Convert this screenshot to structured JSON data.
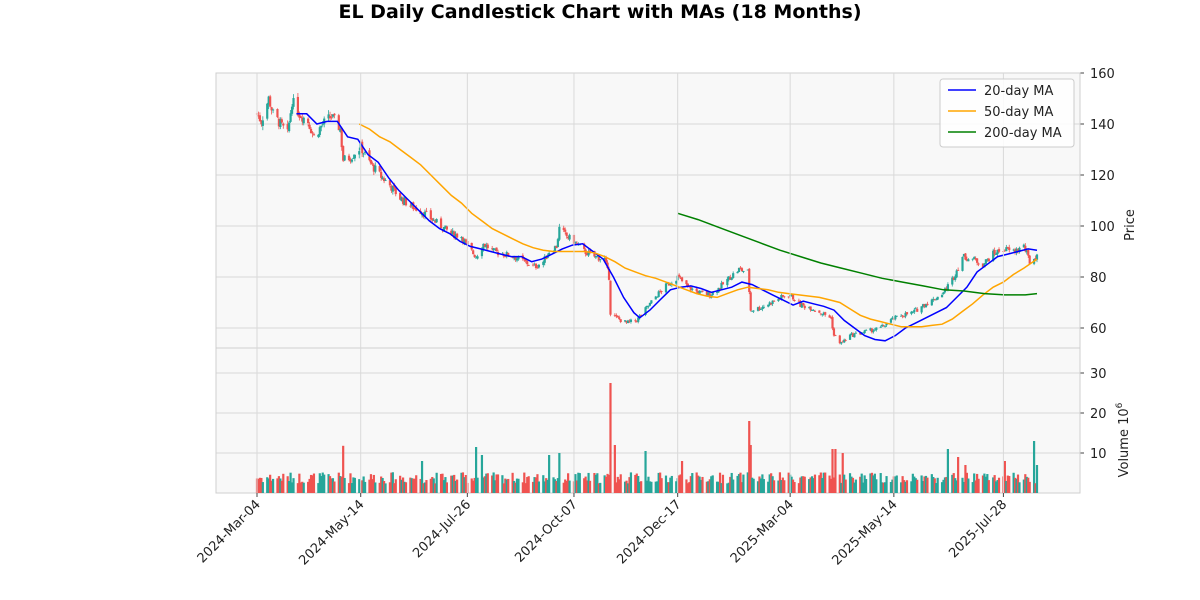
{
  "chart_data": {
    "type": "candlestick",
    "title": "EL Daily Candlestick Chart with MAs (18 Months)",
    "price_axis": {
      "label": "Price",
      "ticks": [
        60,
        80,
        100,
        120,
        140,
        160
      ],
      "range": [
        50,
        160
      ]
    },
    "volume_axis": {
      "label": "Volume",
      "exponent_label": "6",
      "ticks": [
        10,
        20,
        30
      ],
      "range": [
        0,
        30
      ]
    },
    "x_axis": {
      "ticks": [
        "2024-Mar-04",
        "2024-May-14",
        "2024-Jul-26",
        "2024-Oct-07",
        "2024-Dec-17",
        "2025-Mar-04",
        "2025-May-14",
        "2025-Jul-28"
      ],
      "start": "2024-03-04",
      "end": "2025-08-20"
    },
    "price_anchors": [
      [
        "2024-03-04",
        144
      ],
      [
        "2024-03-07",
        141
      ],
      [
        "2024-03-12",
        150
      ],
      [
        "2024-03-15",
        144
      ],
      [
        "2024-03-20",
        140
      ],
      [
        "2024-03-25",
        136
      ],
      [
        "2024-03-28",
        149
      ],
      [
        "2024-04-02",
        144
      ],
      [
        "2024-04-08",
        141
      ],
      [
        "2024-04-12",
        135
      ],
      [
        "2024-04-18",
        140
      ],
      [
        "2024-04-24",
        143
      ],
      [
        "2024-04-30",
        138
      ],
      [
        "2024-05-02",
        126
      ],
      [
        "2024-05-07",
        127
      ],
      [
        "2024-05-14",
        131
      ],
      [
        "2024-05-20",
        125
      ],
      [
        "2024-05-27",
        120
      ],
      [
        "2024-06-03",
        116
      ],
      [
        "2024-06-10",
        111
      ],
      [
        "2024-06-17",
        108
      ],
      [
        "2024-06-24",
        106
      ],
      [
        "2024-07-01",
        103
      ],
      [
        "2024-07-08",
        100
      ],
      [
        "2024-07-15",
        97
      ],
      [
        "2024-07-22",
        96
      ],
      [
        "2024-07-26",
        92
      ],
      [
        "2024-08-01",
        88
      ],
      [
        "2024-08-06",
        93
      ],
      [
        "2024-08-13",
        90
      ],
      [
        "2024-08-20",
        89
      ],
      [
        "2024-08-27",
        88
      ],
      [
        "2024-09-03",
        86
      ],
      [
        "2024-09-10",
        84
      ],
      [
        "2024-09-16",
        86
      ],
      [
        "2024-09-20",
        90
      ],
      [
        "2024-09-25",
        92
      ],
      [
        "2024-09-27",
        99
      ],
      [
        "2024-10-02",
        96
      ],
      [
        "2024-10-07",
        94
      ],
      [
        "2024-10-14",
        90
      ],
      [
        "2024-10-21",
        88
      ],
      [
        "2024-10-28",
        87
      ],
      [
        "2024-10-31",
        80
      ],
      [
        "2024-11-01",
        66
      ],
      [
        "2024-11-05",
        64
      ],
      [
        "2024-11-12",
        62
      ],
      [
        "2024-11-19",
        63
      ],
      [
        "2024-11-26",
        68
      ],
      [
        "2024-12-03",
        73
      ],
      [
        "2024-12-10",
        77
      ],
      [
        "2024-12-17",
        80
      ],
      [
        "2024-12-24",
        76
      ],
      [
        "2024-12-31",
        74
      ],
      [
        "2025-01-08",
        73
      ],
      [
        "2025-01-15",
        76
      ],
      [
        "2025-01-22",
        80
      ],
      [
        "2025-01-28",
        83
      ],
      [
        "2025-02-03",
        82
      ],
      [
        "2025-02-05",
        67
      ],
      [
        "2025-02-12",
        68
      ],
      [
        "2025-02-19",
        70
      ],
      [
        "2025-02-26",
        72
      ],
      [
        "2025-03-04",
        73
      ],
      [
        "2025-03-11",
        69
      ],
      [
        "2025-03-18",
        68
      ],
      [
        "2025-03-25",
        66
      ],
      [
        "2025-04-01",
        64
      ],
      [
        "2025-04-03",
        57
      ],
      [
        "2025-04-08",
        54
      ],
      [
        "2025-04-14",
        57
      ],
      [
        "2025-04-21",
        58
      ],
      [
        "2025-04-28",
        59
      ],
      [
        "2025-05-05",
        60
      ],
      [
        "2025-05-12",
        63
      ],
      [
        "2025-05-19",
        65
      ],
      [
        "2025-05-27",
        66
      ],
      [
        "2025-06-03",
        69
      ],
      [
        "2025-06-10",
        71
      ],
      [
        "2025-06-17",
        74
      ],
      [
        "2025-06-24",
        80
      ],
      [
        "2025-06-30",
        88
      ],
      [
        "2025-07-07",
        87
      ],
      [
        "2025-07-14",
        85
      ],
      [
        "2025-07-21",
        89
      ],
      [
        "2025-07-28",
        91
      ],
      [
        "2025-08-04",
        90
      ],
      [
        "2025-08-11",
        92
      ],
      [
        "2025-08-15",
        86
      ],
      [
        "2025-08-20",
        88
      ]
    ],
    "volume_spikes": [
      [
        "2024-05-02",
        11.8
      ],
      [
        "2024-06-25",
        8
      ],
      [
        "2024-08-01",
        11.5
      ],
      [
        "2024-08-05",
        9.5
      ],
      [
        "2024-09-20",
        9.5
      ],
      [
        "2024-09-27",
        10
      ],
      [
        "2024-11-01",
        27.5
      ],
      [
        "2024-11-04",
        12
      ],
      [
        "2024-11-25",
        10.5
      ],
      [
        "2024-12-20",
        8
      ],
      [
        "2025-02-04",
        18
      ],
      [
        "2025-02-05",
        12
      ],
      [
        "2025-04-02",
        11
      ],
      [
        "2025-04-04",
        11
      ],
      [
        "2025-04-09",
        10
      ],
      [
        "2025-06-20",
        11
      ],
      [
        "2025-06-27",
        9
      ],
      [
        "2025-07-02",
        7
      ],
      [
        "2025-07-29",
        8
      ],
      [
        "2025-08-18",
        13
      ],
      [
        "2025-08-20",
        7
      ]
    ],
    "series": [
      {
        "name": "20-day MA",
        "color": "#0000ff",
        "points": [
          [
            "2024-03-31",
            144
          ],
          [
            "2024-04-07",
            144
          ],
          [
            "2024-04-14",
            140
          ],
          [
            "2024-04-21",
            141
          ],
          [
            "2024-04-28",
            141
          ],
          [
            "2024-05-05",
            135
          ],
          [
            "2024-05-12",
            134
          ],
          [
            "2024-05-19",
            128
          ],
          [
            "2024-05-26",
            125
          ],
          [
            "2024-06-02",
            119
          ],
          [
            "2024-06-09",
            114
          ],
          [
            "2024-06-16",
            110
          ],
          [
            "2024-06-23",
            106
          ],
          [
            "2024-06-30",
            102
          ],
          [
            "2024-07-07",
            99
          ],
          [
            "2024-07-14",
            97
          ],
          [
            "2024-07-21",
            94
          ],
          [
            "2024-07-28",
            92
          ],
          [
            "2024-08-04",
            91
          ],
          [
            "2024-08-11",
            90
          ],
          [
            "2024-08-18",
            89
          ],
          [
            "2024-08-25",
            88
          ],
          [
            "2024-09-01",
            88
          ],
          [
            "2024-09-08",
            86
          ],
          [
            "2024-09-15",
            87
          ],
          [
            "2024-09-22",
            89
          ],
          [
            "2024-09-29",
            91
          ],
          [
            "2024-10-06",
            92.5
          ],
          [
            "2024-10-13",
            93
          ],
          [
            "2024-10-20",
            90
          ],
          [
            "2024-10-27",
            87
          ],
          [
            "2024-11-03",
            80
          ],
          [
            "2024-11-10",
            72
          ],
          [
            "2024-11-17",
            66
          ],
          [
            "2024-11-21",
            64
          ],
          [
            "2024-11-28",
            67
          ],
          [
            "2024-12-05",
            71
          ],
          [
            "2024-12-12",
            75
          ],
          [
            "2024-12-19",
            76
          ],
          [
            "2024-12-26",
            76.5
          ],
          [
            "2025-01-02",
            75.5
          ],
          [
            "2025-01-09",
            74
          ],
          [
            "2025-01-16",
            75
          ],
          [
            "2025-01-23",
            76
          ],
          [
            "2025-01-30",
            78
          ],
          [
            "2025-02-06",
            77
          ],
          [
            "2025-02-13",
            75
          ],
          [
            "2025-02-20",
            73
          ],
          [
            "2025-02-27",
            71
          ],
          [
            "2025-03-06",
            69
          ],
          [
            "2025-03-13",
            70.5
          ],
          [
            "2025-03-20",
            69.5
          ],
          [
            "2025-03-27",
            68.5
          ],
          [
            "2025-04-03",
            67
          ],
          [
            "2025-04-10",
            63
          ],
          [
            "2025-04-17",
            60
          ],
          [
            "2025-04-24",
            57
          ],
          [
            "2025-05-01",
            55.5
          ],
          [
            "2025-05-08",
            55
          ],
          [
            "2025-05-15",
            57
          ],
          [
            "2025-05-22",
            60
          ],
          [
            "2025-05-29",
            62
          ],
          [
            "2025-06-05",
            64
          ],
          [
            "2025-06-12",
            66
          ],
          [
            "2025-06-19",
            68
          ],
          [
            "2025-06-26",
            72
          ],
          [
            "2025-07-03",
            76
          ],
          [
            "2025-07-10",
            82
          ],
          [
            "2025-07-17",
            85
          ],
          [
            "2025-07-24",
            88
          ],
          [
            "2025-07-31",
            89
          ],
          [
            "2025-08-07",
            90
          ],
          [
            "2025-08-14",
            91
          ],
          [
            "2025-08-20",
            90.5
          ]
        ]
      },
      {
        "name": "50-day MA",
        "color": "#ffa500",
        "points": [
          [
            "2024-05-13",
            140
          ],
          [
            "2024-05-20",
            138
          ],
          [
            "2024-05-27",
            135
          ],
          [
            "2024-06-03",
            133
          ],
          [
            "2024-06-10",
            130
          ],
          [
            "2024-06-17",
            127
          ],
          [
            "2024-06-24",
            124
          ],
          [
            "2024-07-01",
            120
          ],
          [
            "2024-07-08",
            116
          ],
          [
            "2024-07-15",
            112
          ],
          [
            "2024-07-22",
            109
          ],
          [
            "2024-07-29",
            105
          ],
          [
            "2024-08-05",
            102
          ],
          [
            "2024-08-12",
            99
          ],
          [
            "2024-08-19",
            97
          ],
          [
            "2024-08-26",
            95
          ],
          [
            "2024-09-02",
            93
          ],
          [
            "2024-09-09",
            91.5
          ],
          [
            "2024-09-16",
            90.5
          ],
          [
            "2024-09-23",
            90
          ],
          [
            "2024-09-30",
            90
          ],
          [
            "2024-10-07",
            90
          ],
          [
            "2024-10-14",
            90
          ],
          [
            "2024-10-21",
            89.5
          ],
          [
            "2024-10-28",
            88
          ],
          [
            "2024-11-04",
            86
          ],
          [
            "2024-11-11",
            83.5
          ],
          [
            "2024-11-18",
            82
          ],
          [
            "2024-11-25",
            80.5
          ],
          [
            "2024-12-02",
            79.5
          ],
          [
            "2024-12-09",
            78
          ],
          [
            "2024-12-16",
            76.5
          ],
          [
            "2024-12-23",
            75
          ],
          [
            "2024-12-30",
            73.5
          ],
          [
            "2025-01-06",
            72.5
          ],
          [
            "2025-01-13",
            72
          ],
          [
            "2025-01-20",
            73.5
          ],
          [
            "2025-01-27",
            75
          ],
          [
            "2025-02-03",
            76
          ],
          [
            "2025-02-10",
            75.5
          ],
          [
            "2025-02-17",
            75
          ],
          [
            "2025-02-24",
            74
          ],
          [
            "2025-03-03",
            73.5
          ],
          [
            "2025-03-10",
            73
          ],
          [
            "2025-03-17",
            72.5
          ],
          [
            "2025-03-24",
            72
          ],
          [
            "2025-03-31",
            71
          ],
          [
            "2025-04-07",
            70
          ],
          [
            "2025-04-14",
            67.5
          ],
          [
            "2025-04-21",
            65
          ],
          [
            "2025-04-28",
            63.5
          ],
          [
            "2025-05-05",
            62.5
          ],
          [
            "2025-05-12",
            61.5
          ],
          [
            "2025-05-19",
            60.5
          ],
          [
            "2025-05-26",
            60.5
          ],
          [
            "2025-06-02",
            60.5
          ],
          [
            "2025-06-09",
            61
          ],
          [
            "2025-06-16",
            61.5
          ],
          [
            "2025-06-23",
            63.5
          ],
          [
            "2025-06-30",
            66.5
          ],
          [
            "2025-07-07",
            69.5
          ],
          [
            "2025-07-14",
            73
          ],
          [
            "2025-07-21",
            76
          ],
          [
            "2025-07-28",
            78
          ],
          [
            "2025-08-04",
            81
          ],
          [
            "2025-08-11",
            83.5
          ],
          [
            "2025-08-20",
            87
          ]
        ]
      },
      {
        "name": "200-day MA",
        "color": "#008000",
        "points": [
          [
            "2024-12-17",
            105
          ],
          [
            "2024-12-31",
            102.5
          ],
          [
            "2025-01-14",
            99.5
          ],
          [
            "2025-01-28",
            96.5
          ],
          [
            "2025-02-11",
            93.5
          ],
          [
            "2025-02-25",
            90.5
          ],
          [
            "2025-03-11",
            88
          ],
          [
            "2025-03-25",
            85.5
          ],
          [
            "2025-04-08",
            83.5
          ],
          [
            "2025-04-22",
            81.5
          ],
          [
            "2025-05-06",
            79.5
          ],
          [
            "2025-05-20",
            78
          ],
          [
            "2025-06-03",
            76.5
          ],
          [
            "2025-06-17",
            75
          ],
          [
            "2025-07-01",
            74.5
          ],
          [
            "2025-07-15",
            73.5
          ],
          [
            "2025-07-29",
            73
          ],
          [
            "2025-08-12",
            73
          ],
          [
            "2025-08-20",
            73.5
          ]
        ]
      }
    ],
    "colors": {
      "up": "#26a69a",
      "down": "#ef5350",
      "grid": "#d9d9d9",
      "panel_bg": "#f8f8f8",
      "panel_border": "#cfcfcf"
    },
    "legend": {
      "position": "top-right"
    }
  }
}
